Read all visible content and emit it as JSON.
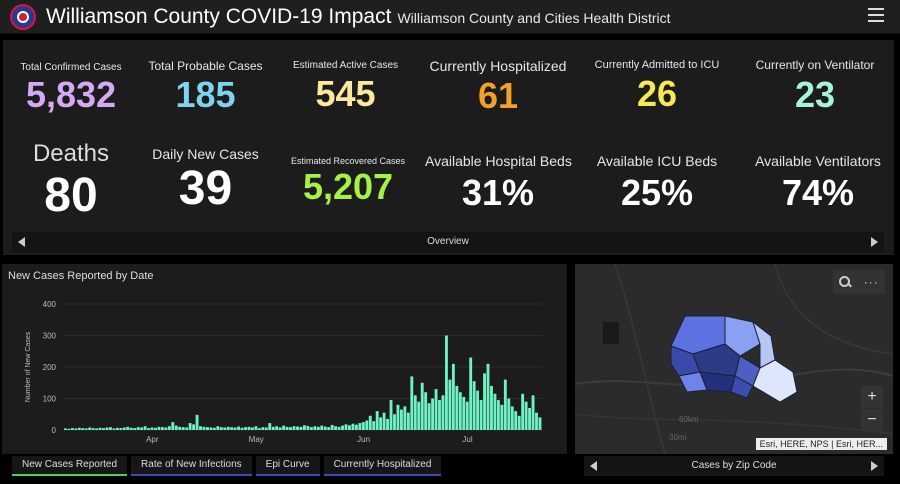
{
  "header": {
    "title": "Williamson County COVID-19 Impact",
    "subtitle": "Williamson County and Cities Health District"
  },
  "kpis": {
    "total_confirmed": {
      "label": "Total Confirmed Cases",
      "value": "5,832",
      "color": "#d6a9f5"
    },
    "total_probable": {
      "label": "Total Probable Cases",
      "value": "185",
      "color": "#7fd3ee"
    },
    "est_active": {
      "label": "Estimated Active Cases",
      "value": "545",
      "color": "#fde8a0"
    },
    "hospitalized": {
      "label": "Currently Hospitalized",
      "value": "61",
      "color": "#f3a12a"
    },
    "icu": {
      "label": "Currently Admitted to ICU",
      "value": "26",
      "color": "#f5ea55"
    },
    "ventilator": {
      "label": "Currently on Ventilator",
      "value": "23",
      "color": "#a8f2d6"
    },
    "deaths": {
      "label": "Deaths",
      "value": "80",
      "color": "#ffffff"
    },
    "daily_new": {
      "label": "Daily New Cases",
      "value": "39",
      "color": "#ffffff"
    },
    "est_recovered": {
      "label": "Estimated Recovered Cases",
      "value": "5,207",
      "color": "#a6f04a"
    },
    "hospital_beds": {
      "label": "Available Hospital Beds",
      "value": "31%",
      "color": "#ffffff"
    },
    "icu_beds": {
      "label": "Available ICU Beds",
      "value": "25%",
      "color": "#ffffff"
    },
    "ventilators": {
      "label": "Available Ventilators",
      "value": "74%",
      "color": "#ffffff"
    }
  },
  "overview_nav": {
    "label": "Overview"
  },
  "chart_data": {
    "type": "bar",
    "title": "New Cases Reported by Date",
    "ylabel": "Number of New Cases",
    "xlabel": "",
    "ylim": [
      0,
      400
    ],
    "yticks": [
      0,
      100,
      200,
      300,
      400
    ],
    "xticks": [
      {
        "label": "Apr",
        "index": 25
      },
      {
        "label": "May",
        "index": 55
      },
      {
        "label": "Jun",
        "index": 86
      },
      {
        "label": "Jul",
        "index": 116
      }
    ],
    "bar_color": "#6ff2c4",
    "values": [
      5,
      4,
      6,
      5,
      7,
      6,
      5,
      8,
      6,
      5,
      7,
      6,
      8,
      9,
      5,
      7,
      6,
      8,
      10,
      7,
      6,
      9,
      8,
      12,
      6,
      8,
      7,
      10,
      9,
      8,
      12,
      25,
      14,
      10,
      9,
      8,
      22,
      18,
      48,
      12,
      10,
      9,
      8,
      7,
      12,
      9,
      8,
      10,
      9,
      8,
      11,
      7,
      9,
      10,
      8,
      12,
      6,
      9,
      8,
      22,
      10,
      12,
      8,
      14,
      10,
      9,
      12,
      11,
      10,
      15,
      13,
      9,
      12,
      10,
      14,
      11,
      9,
      16,
      12,
      10,
      14,
      18,
      15,
      20,
      17,
      22,
      25,
      30,
      45,
      28,
      60,
      40,
      55,
      35,
      95,
      50,
      80,
      65,
      75,
      55,
      170,
      110,
      90,
      150,
      120,
      85,
      100,
      130,
      95,
      110,
      300,
      160,
      210,
      140,
      120,
      105,
      90,
      230,
      155,
      125,
      95,
      180,
      210,
      140,
      115,
      95,
      80,
      160,
      100,
      75,
      60,
      45,
      115,
      90,
      70,
      110,
      55,
      40
    ]
  },
  "tabs": [
    "New Cases Reported",
    "Rate of New Infections",
    "Epi Curve",
    "Currently Hospitalized"
  ],
  "map": {
    "attribution": "Esri, HERE, NPS | Esri, HER...",
    "nav_label": "Cases by Zip Code",
    "zoom_in": "+",
    "zoom_out": "−",
    "scale_text_1": "60km",
    "scale_text_2": "30mi"
  }
}
